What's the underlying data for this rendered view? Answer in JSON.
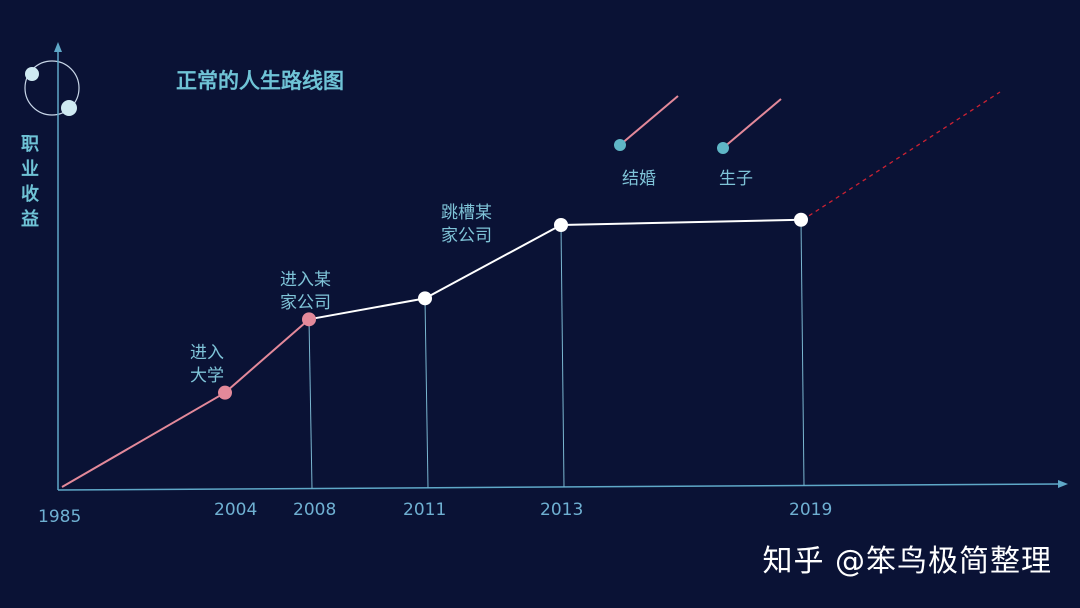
{
  "chart_data": {
    "type": "line",
    "title": "正常的人生路线图",
    "ylabel": "职业收益",
    "xlabel": "",
    "x_ticks": [
      "1985",
      "2004",
      "2008",
      "2011",
      "2013",
      "2019"
    ],
    "series": [
      {
        "points": [
          {
            "x": 1985,
            "y": 0,
            "label": "",
            "style": "line-pink"
          },
          {
            "x": 2004,
            "y": 36,
            "label": "进入\n大学",
            "style": "pink"
          },
          {
            "x": 2008,
            "y": 64,
            "label": "进入某\n家公司",
            "style": "pink"
          },
          {
            "x": 2011,
            "y": 72,
            "label": "",
            "style": "white"
          },
          {
            "x": 2013,
            "y": 100,
            "label": "跳槽某\n家公司",
            "style": "white"
          },
          {
            "x": 2019,
            "y": 102,
            "label": "",
            "style": "white"
          }
        ]
      }
    ],
    "events": [
      {
        "label": "结婚"
      },
      {
        "label": "生子"
      }
    ],
    "colors": {
      "background": "#0a1235",
      "axis": "#5fa8c8",
      "pink": "#e3899a",
      "white": "#ffffff",
      "projection": "#cc2233",
      "event_dot": "#5fb6c6"
    }
  },
  "watermark": "知乎 @笨鸟极简整理"
}
